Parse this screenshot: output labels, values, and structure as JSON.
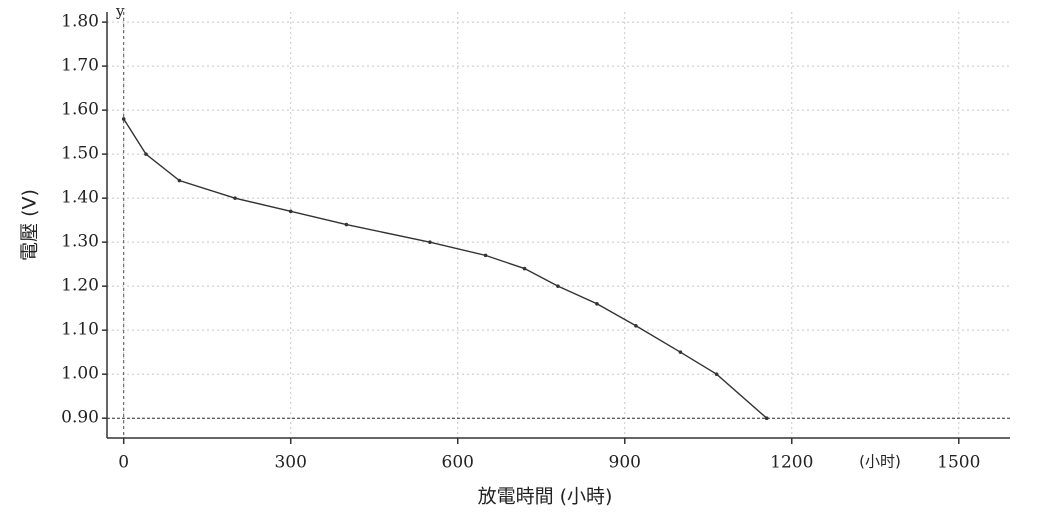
{
  "chart_data": {
    "type": "line",
    "y_label": "電壓 (V)",
    "x_label": "放電時間 (小時)",
    "x_unit_note": "(小时)",
    "y_axis_marker": "y",
    "xlim": [
      -30,
      1592
    ],
    "ylim": [
      0.855,
      1.823
    ],
    "xticks": [
      0,
      300,
      600,
      900,
      1200,
      1500
    ],
    "yticks": [
      {
        "value": 0.9,
        "label": "0.90"
      },
      {
        "value": 1.0,
        "label": "1.00"
      },
      {
        "value": 1.1,
        "label": "1.10"
      },
      {
        "value": 1.2,
        "label": "1.20"
      },
      {
        "value": 1.3,
        "label": "1.30"
      },
      {
        "value": 1.4,
        "label": "1.40"
      },
      {
        "value": 1.5,
        "label": "1.50"
      },
      {
        "value": 1.6,
        "label": "1.60"
      },
      {
        "value": 1.7,
        "label": "1.70"
      },
      {
        "value": 1.8,
        "label": "1.80"
      }
    ],
    "grid": true,
    "reference_line": 0.9,
    "series": [
      {
        "color": "#333333",
        "x": [
          0,
          40,
          100,
          200,
          300,
          400,
          550,
          650,
          720,
          780,
          850,
          920,
          1000,
          1065,
          1155
        ],
        "values": [
          1.58,
          1.5,
          1.44,
          1.4,
          1.37,
          1.34,
          1.3,
          1.27,
          1.24,
          1.2,
          1.16,
          1.11,
          1.05,
          1.0,
          0.9
        ]
      }
    ]
  }
}
